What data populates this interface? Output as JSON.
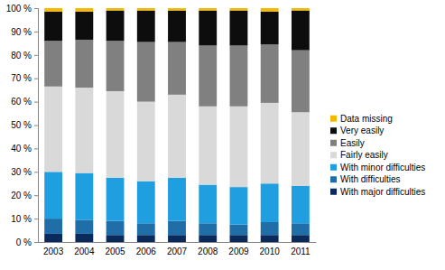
{
  "chart_data": {
    "type": "bar",
    "stacked": true,
    "legend": "right",
    "categories": [
      "2003",
      "2004",
      "2005",
      "2006",
      "2007",
      "2008",
      "2009",
      "2010",
      "2011"
    ],
    "series": [
      {
        "name": "With major difficulties",
        "color": "#0b2a5c",
        "values": [
          3.5,
          3.5,
          3,
          3,
          3,
          3,
          3,
          3,
          3
        ]
      },
      {
        "name": "With difficulties",
        "color": "#1f6ea8",
        "values": [
          6.5,
          6,
          6,
          5,
          6,
          5,
          4.5,
          5.5,
          5
        ]
      },
      {
        "name": "With minor difficulties",
        "color": "#1f9fe0",
        "values": [
          20,
          20,
          18.5,
          18,
          18.5,
          16.5,
          16,
          16.5,
          16
        ]
      },
      {
        "name": "Fairly easily",
        "color": "#d9d9d9",
        "values": [
          36.5,
          36.5,
          37,
          34,
          35.5,
          33.5,
          34.5,
          34.5,
          31.5
        ]
      },
      {
        "name": "Easily",
        "color": "#808080",
        "values": [
          19.5,
          20.5,
          21.5,
          25.5,
          22.5,
          26,
          26,
          25,
          26.5
        ]
      },
      {
        "name": "Very easily",
        "color": "#0d0d0d",
        "values": [
          12.5,
          12,
          13,
          13.5,
          13.5,
          15,
          15,
          14,
          17
        ]
      },
      {
        "name": "Data missing",
        "color": "#f5b800",
        "values": [
          1.5,
          1.5,
          1,
          1,
          1,
          1,
          1,
          1.5,
          1
        ]
      }
    ],
    "ylim": [
      0,
      100
    ],
    "yticks": [
      {
        "value": 0,
        "label": "0 %"
      },
      {
        "value": 10,
        "label": "10 %"
      },
      {
        "value": 20,
        "label": "20 %"
      },
      {
        "value": 30,
        "label": "30 %"
      },
      {
        "value": 40,
        "label": "40 %"
      },
      {
        "value": 50,
        "label": "50 %"
      },
      {
        "value": 60,
        "label": "60 %"
      },
      {
        "value": 70,
        "label": "70 %"
      },
      {
        "value": 80,
        "label": "80 %"
      },
      {
        "value": 90,
        "label": "90 %"
      },
      {
        "value": 100,
        "label": "100 %"
      }
    ]
  }
}
